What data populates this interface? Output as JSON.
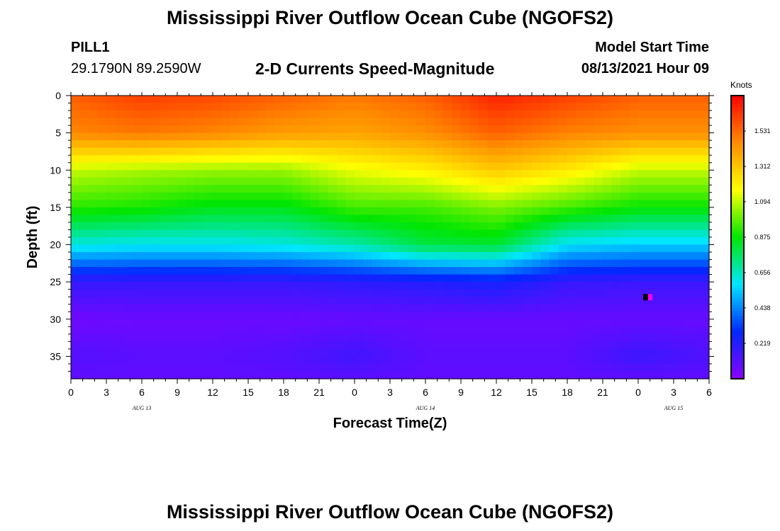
{
  "header": {
    "title": "Mississippi River Outflow Ocean Cube (NGOFS2)",
    "station": "PILL1",
    "coords": "29.1790N  89.2590W",
    "subtitle": "2-D Currents Speed-Magnitude",
    "model_start_label": "Model Start Time",
    "model_start_value": "08/13/2021 Hour 09"
  },
  "footer": {
    "title": "Mississippi River Outflow Ocean Cube (NGOFS2)"
  },
  "chart_data": {
    "type": "heatmap",
    "xlabel": "Forecast Time(Z)",
    "ylabel": "Depth (ft)",
    "x_tick_labels": [
      "0",
      "3",
      "6",
      "9",
      "12",
      "15",
      "18",
      "21",
      "0",
      "3",
      "6",
      "9",
      "12",
      "15",
      "18",
      "21",
      "0",
      "3",
      "6"
    ],
    "date_labels": [
      {
        "label": "AUG 13",
        "at_tick": 2
      },
      {
        "label": "AUG 14",
        "at_tick": 10
      },
      {
        "label": "AUG 15",
        "at_tick": 17
      }
    ],
    "xlim": [
      0,
      54
    ],
    "ylim": [
      38,
      0
    ],
    "y_ticks": [
      0,
      5,
      10,
      15,
      20,
      25,
      30,
      35
    ],
    "colorbar": {
      "title": "Knots",
      "min": 0,
      "max": 1.75,
      "tick_values": [
        1.531,
        1.312,
        1.094,
        0.875,
        0.656,
        0.438,
        0.219
      ],
      "tick_labels": [
        "1.531",
        "1.312",
        "1.094",
        "0.875",
        "0.656",
        "0.438",
        "0.219"
      ],
      "colors": [
        "#8c00ff",
        "#0028ff",
        "#00e6ff",
        "#00e600",
        "#ffff00",
        "#ff8c00",
        "#ff0000"
      ]
    },
    "field": {
      "hours": [
        0,
        6,
        12,
        18,
        24,
        30,
        36,
        42,
        48,
        54
      ],
      "depths": [
        0,
        5,
        10,
        15,
        20,
        25,
        30,
        35,
        38
      ],
      "speed": [
        [
          1.55,
          1.62,
          1.6,
          1.55,
          1.5,
          1.55,
          1.68,
          1.62,
          1.55,
          1.55
        ],
        [
          1.47,
          1.5,
          1.47,
          1.42,
          1.4,
          1.45,
          1.55,
          1.48,
          1.45,
          1.45
        ],
        [
          1.1,
          1.07,
          1.05,
          1.05,
          1.15,
          1.2,
          1.3,
          1.22,
          1.1,
          1.1
        ],
        [
          0.92,
          0.9,
          0.85,
          0.85,
          0.95,
          0.95,
          1.02,
          0.95,
          0.88,
          0.88
        ],
        [
          0.62,
          0.6,
          0.6,
          0.62,
          0.68,
          0.8,
          0.82,
          0.58,
          0.55,
          0.55
        ],
        [
          0.18,
          0.18,
          0.18,
          0.18,
          0.2,
          0.22,
          0.25,
          0.18,
          0.17,
          0.17
        ],
        [
          0.06,
          0.07,
          0.07,
          0.07,
          0.08,
          0.08,
          0.08,
          0.08,
          0.08,
          0.08
        ],
        [
          0.12,
          0.1,
          0.1,
          0.12,
          0.16,
          0.1,
          0.1,
          0.1,
          0.17,
          0.13
        ],
        [
          0.09,
          0.09,
          0.09,
          0.09,
          0.1,
          0.09,
          0.09,
          0.09,
          0.09,
          0.09
        ]
      ]
    },
    "marker": {
      "hour": 48.6,
      "depth": 27
    }
  }
}
